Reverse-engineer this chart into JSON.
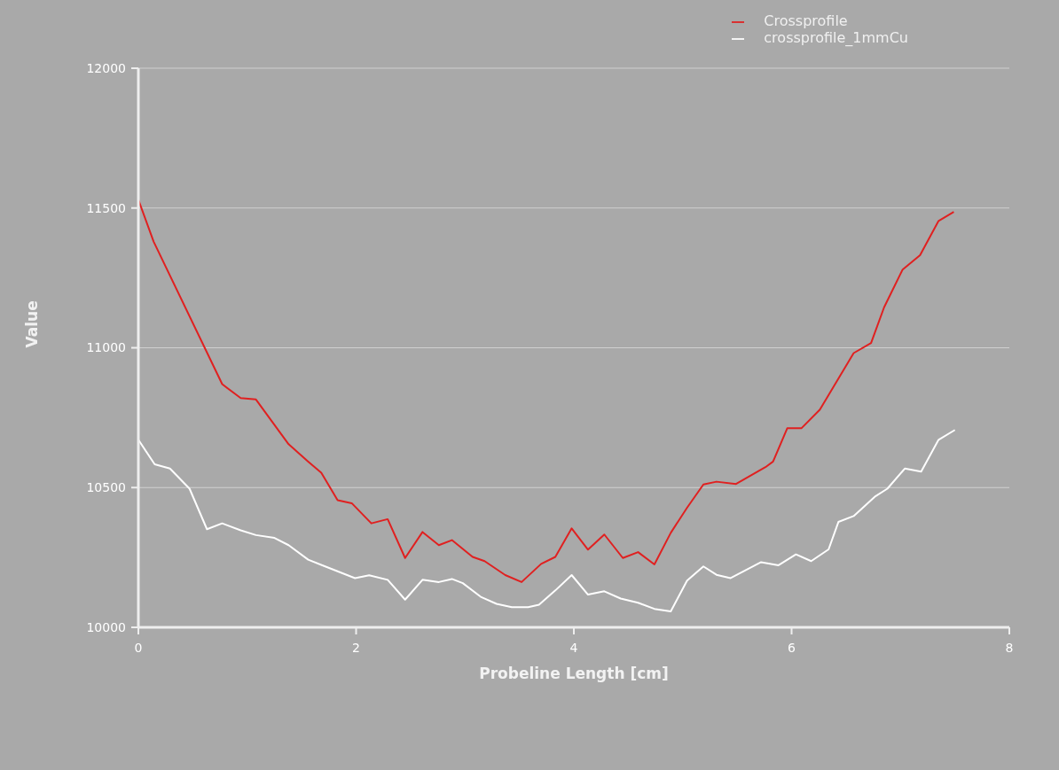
{
  "chart_data": {
    "type": "line",
    "xlabel": "Probeline Length [cm]",
    "ylabel": "Value",
    "xlim": [
      0,
      8
    ],
    "xticks": [
      0,
      2,
      4,
      6,
      8
    ],
    "ylim": [
      10000,
      12000
    ],
    "yticks": [
      10000,
      10500,
      11000,
      11500,
      12000
    ],
    "grid": "y",
    "legend": "top right",
    "marker": "none",
    "line_style": "solid",
    "series": [
      {
        "name": "Crossprofile",
        "color": "#e02020",
        "x": [
          0,
          0.14,
          0.77,
          0.94,
          1.08,
          1.38,
          1.56,
          1.68,
          1.83,
          1.96,
          2.14,
          2.29,
          2.45,
          2.61,
          2.76,
          2.88,
          3.07,
          3.18,
          3.37,
          3.52,
          3.7,
          3.83,
          3.98,
          4.13,
          4.28,
          4.45,
          4.59,
          4.74,
          4.89,
          5.04,
          5.19,
          5.31,
          5.49,
          5.76,
          5.83,
          5.96,
          6.09,
          6.26,
          6.57,
          6.73,
          6.85,
          7.02,
          7.18,
          7.35,
          7.49
        ],
        "values": [
          11530,
          11380,
          10870,
          10820,
          10815,
          10655,
          10593,
          10553,
          10455,
          10444,
          10372,
          10387,
          10248,
          10341,
          10294,
          10312,
          10252,
          10237,
          10187,
          10162,
          10227,
          10252,
          10354,
          10278,
          10332,
          10248,
          10269,
          10225,
          10338,
          10428,
          10511,
          10521,
          10513,
          10573,
          10593,
          10712,
          10712,
          10779,
          10981,
          11017,
          11145,
          11280,
          11331,
          11454,
          11486
        ]
      },
      {
        "name": "crossprofile_1mmCu",
        "color": "#ffffff",
        "x": [
          0,
          0.15,
          0.29,
          0.47,
          0.63,
          0.77,
          0.94,
          1.08,
          1.25,
          1.38,
          1.56,
          1.69,
          1.99,
          2.12,
          2.29,
          2.45,
          2.61,
          2.76,
          2.88,
          2.98,
          3.15,
          3.29,
          3.43,
          3.58,
          3.68,
          3.83,
          3.98,
          4.13,
          4.28,
          4.43,
          4.59,
          4.74,
          4.89,
          5.04,
          5.19,
          5.31,
          5.44,
          5.72,
          5.88,
          6.04,
          6.18,
          6.34,
          6.43,
          6.57,
          6.77,
          6.88,
          7.04,
          7.19,
          7.35,
          7.5
        ],
        "values": [
          10671,
          10583,
          10568,
          10496,
          10351,
          10372,
          10347,
          10330,
          10320,
          10294,
          10242,
          10222,
          10176,
          10186,
          10170,
          10099,
          10170,
          10162,
          10173,
          10158,
          10108,
          10084,
          10072,
          10072,
          10081,
          10132,
          10187,
          10117,
          10129,
          10103,
          10088,
          10066,
          10057,
          10167,
          10218,
          10188,
          10176,
          10233,
          10222,
          10261,
          10237,
          10279,
          10377,
          10398,
          10469,
          10496,
          10568,
          10557,
          10671,
          10706
        ]
      }
    ]
  }
}
